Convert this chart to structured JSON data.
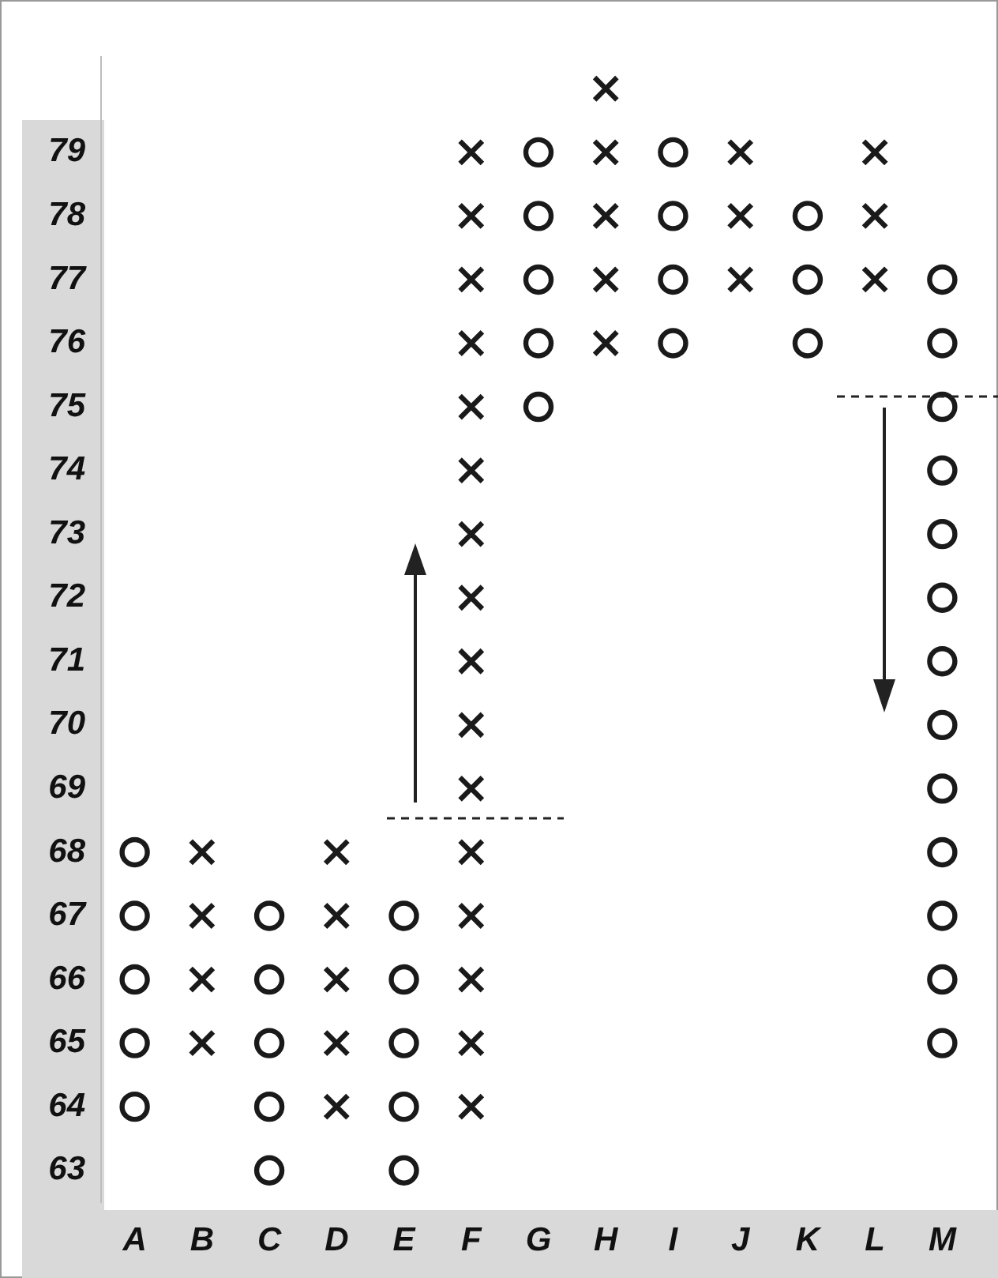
{
  "chart_data": {
    "type": "scatter",
    "categories": [
      "A",
      "B",
      "C",
      "D",
      "E",
      "F",
      "G",
      "H",
      "I",
      "J",
      "K",
      "L",
      "M"
    ],
    "ylim": [
      62.5,
      80.5
    ],
    "yticks": [
      63,
      64,
      65,
      66,
      67,
      68,
      69,
      70,
      71,
      72,
      73,
      74,
      75,
      76,
      77,
      78,
      79
    ],
    "grid": false,
    "legend": false,
    "series": [
      {
        "marker": "cross",
        "color": "#1a1a1a",
        "x": [
          "B",
          "B",
          "B",
          "B",
          "D",
          "D",
          "D",
          "D",
          "D",
          "F",
          "F",
          "F",
          "F",
          "F",
          "F",
          "F",
          "F",
          "F",
          "F",
          "F",
          "F",
          "F",
          "F",
          "F",
          "F",
          "H",
          "H",
          "H",
          "H",
          "H",
          "J",
          "J",
          "J",
          "L",
          "L",
          "L"
        ],
        "values": [
          68,
          67,
          66,
          65,
          68,
          67,
          66,
          65,
          64,
          64,
          65,
          66,
          67,
          68,
          69,
          70,
          71,
          72,
          73,
          74,
          75,
          76,
          77,
          78,
          79,
          80,
          79,
          78,
          77,
          76,
          79,
          78,
          77,
          79,
          78,
          77
        ]
      },
      {
        "marker": "circle",
        "color": "#1a1a1a",
        "x": [
          "A",
          "A",
          "A",
          "A",
          "A",
          "C",
          "C",
          "C",
          "C",
          "C",
          "E",
          "E",
          "E",
          "E",
          "E",
          "G",
          "G",
          "G",
          "G",
          "G",
          "I",
          "I",
          "I",
          "I",
          "K",
          "K",
          "K",
          "M",
          "M",
          "M",
          "M",
          "M",
          "M",
          "M",
          "M",
          "M",
          "M",
          "M",
          "M",
          "M"
        ],
        "values": [
          68,
          67,
          66,
          65,
          64,
          67,
          66,
          65,
          64,
          63,
          67,
          66,
          65,
          64,
          63,
          79,
          78,
          77,
          76,
          75,
          79,
          78,
          77,
          76,
          78,
          77,
          76,
          77,
          76,
          75,
          74,
          73,
          72,
          71,
          70,
          69,
          68,
          67,
          66,
          65
        ]
      }
    ]
  }
}
